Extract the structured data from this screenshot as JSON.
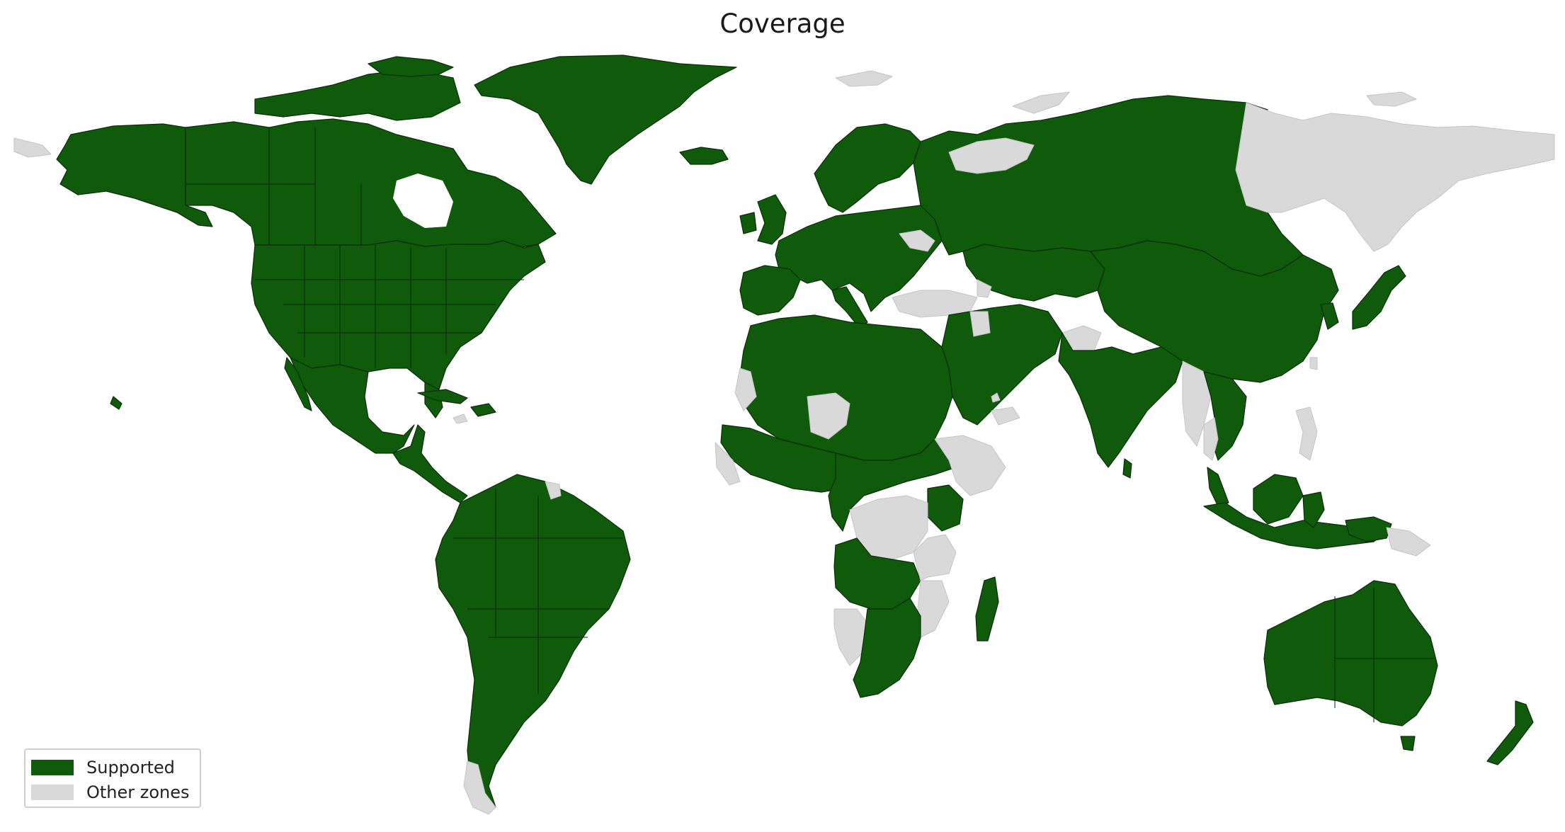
{
  "title": "Coverage",
  "colors": {
    "supported": "#0f5a0b",
    "other": "#d9d9d9"
  },
  "legend": {
    "placement": "bottom-left",
    "items": [
      {
        "label": "Supported",
        "color": "#0f5a0b"
      },
      {
        "label": "Other zones",
        "color": "#d9d9d9"
      }
    ]
  }
}
